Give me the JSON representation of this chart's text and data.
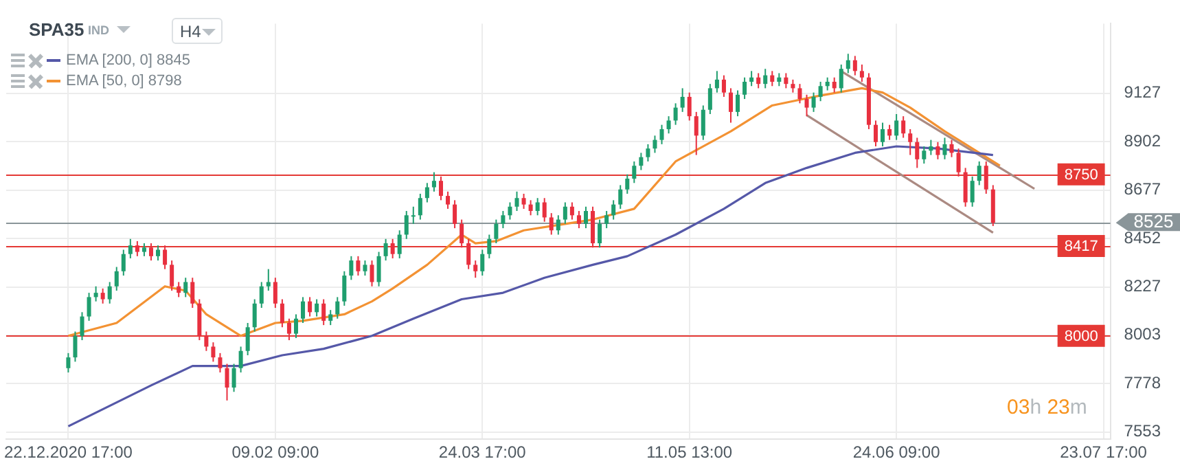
{
  "chart_data": {
    "type": "candlestick",
    "title": "SPA35",
    "annotations": [
      "IND",
      "H4",
      "03h 23m"
    ],
    "categories": [
      "22.12.2020 17:00",
      null,
      null,
      null,
      null,
      null,
      null,
      null,
      null,
      null,
      null,
      null,
      null,
      null,
      null,
      null,
      null,
      null,
      null,
      null,
      null,
      null,
      null,
      null,
      null,
      null,
      null,
      null,
      null,
      null,
      "09.02 09:00",
      null,
      null,
      null,
      null,
      null,
      null,
      null,
      null,
      null,
      null,
      null,
      null,
      null,
      null,
      null,
      null,
      null,
      null,
      null,
      null,
      null,
      null,
      null,
      null,
      null,
      null,
      null,
      null,
      null,
      "24.03 17:00",
      null,
      null,
      null,
      null,
      null,
      null,
      null,
      null,
      null,
      null,
      null,
      null,
      null,
      null,
      null,
      null,
      null,
      null,
      null,
      null,
      null,
      null,
      null,
      null,
      null,
      null,
      null,
      null,
      null,
      "11.05 13:00",
      null,
      null,
      null,
      null,
      null,
      null,
      null,
      null,
      null,
      null,
      null,
      null,
      null,
      null,
      null,
      null,
      null,
      null,
      null,
      null,
      null,
      null,
      null,
      null,
      null,
      null,
      null,
      null,
      null,
      "24.06 09:00",
      null,
      null,
      null,
      null,
      null,
      null,
      null,
      null,
      null,
      null,
      null,
      null,
      null,
      null,
      null,
      null,
      null,
      null,
      null,
      null,
      null,
      null,
      null,
      null,
      null,
      null,
      null,
      null,
      null,
      "23.07 17:00",
      null
    ],
    "ohlc": [
      [
        7850,
        7920,
        7830,
        7900
      ],
      [
        7900,
        8020,
        7880,
        8000
      ],
      [
        8000,
        8110,
        7980,
        8090
      ],
      [
        8090,
        8200,
        8070,
        8180
      ],
      [
        8180,
        8230,
        8160,
        8200
      ],
      [
        8200,
        8220,
        8150,
        8170
      ],
      [
        8170,
        8250,
        8150,
        8230
      ],
      [
        8230,
        8320,
        8210,
        8300
      ],
      [
        8300,
        8400,
        8280,
        8380
      ],
      [
        8380,
        8450,
        8360,
        8420
      ],
      [
        8420,
        8440,
        8370,
        8390
      ],
      [
        8390,
        8430,
        8370,
        8410
      ],
      [
        8410,
        8430,
        8350,
        8370
      ],
      [
        8370,
        8420,
        8350,
        8400
      ],
      [
        8400,
        8420,
        8310,
        8330
      ],
      [
        8330,
        8350,
        8210,
        8230
      ],
      [
        8230,
        8250,
        8180,
        8200
      ],
      [
        8200,
        8270,
        8180,
        8250
      ],
      [
        8250,
        8270,
        8130,
        8150
      ],
      [
        8150,
        8170,
        7980,
        8000
      ],
      [
        8000,
        8020,
        7930,
        7950
      ],
      [
        7950,
        7970,
        7880,
        7900
      ],
      [
        7900,
        7920,
        7830,
        7850
      ],
      [
        7850,
        7870,
        7700,
        7760
      ],
      [
        7760,
        7870,
        7740,
        7850
      ],
      [
        7850,
        7950,
        7830,
        7930
      ],
      [
        7930,
        8060,
        7910,
        8040
      ],
      [
        8040,
        8170,
        8020,
        8150
      ],
      [
        8150,
        8250,
        8130,
        8230
      ],
      [
        8230,
        8310,
        8210,
        8250
      ],
      [
        8250,
        8270,
        8130,
        8150
      ],
      [
        8150,
        8170,
        8040,
        8060
      ],
      [
        8060,
        8080,
        7980,
        8010
      ],
      [
        8010,
        8100,
        7990,
        8080
      ],
      [
        8080,
        8180,
        8060,
        8160
      ],
      [
        8160,
        8180,
        8090,
        8110
      ],
      [
        8110,
        8170,
        8090,
        8150
      ],
      [
        8150,
        8170,
        8050,
        8070
      ],
      [
        8070,
        8120,
        8050,
        8100
      ],
      [
        8100,
        8180,
        8080,
        8160
      ],
      [
        8160,
        8300,
        8140,
        8280
      ],
      [
        8280,
        8370,
        8260,
        8350
      ],
      [
        8350,
        8370,
        8280,
        8300
      ],
      [
        8300,
        8350,
        8280,
        8330
      ],
      [
        8330,
        8350,
        8230,
        8250
      ],
      [
        8250,
        8390,
        8230,
        8370
      ],
      [
        8370,
        8450,
        8350,
        8430
      ],
      [
        8430,
        8450,
        8360,
        8380
      ],
      [
        8380,
        8490,
        8360,
        8470
      ],
      [
        8470,
        8580,
        8450,
        8560
      ],
      [
        8560,
        8600,
        8520,
        8560
      ],
      [
        8560,
        8660,
        8540,
        8640
      ],
      [
        8640,
        8710,
        8620,
        8690
      ],
      [
        8690,
        8760,
        8670,
        8720
      ],
      [
        8720,
        8740,
        8630,
        8650
      ],
      [
        8650,
        8670,
        8590,
        8610
      ],
      [
        8610,
        8630,
        8500,
        8520
      ],
      [
        8520,
        8540,
        8410,
        8430
      ],
      [
        8430,
        8450,
        8310,
        8330
      ],
      [
        8330,
        8350,
        8270,
        8300
      ],
      [
        8300,
        8400,
        8280,
        8380
      ],
      [
        8380,
        8470,
        8360,
        8450
      ],
      [
        8450,
        8540,
        8430,
        8520
      ],
      [
        8520,
        8580,
        8500,
        8560
      ],
      [
        8560,
        8620,
        8540,
        8600
      ],
      [
        8600,
        8670,
        8580,
        8640
      ],
      [
        8640,
        8660,
        8590,
        8610
      ],
      [
        8610,
        8630,
        8560,
        8580
      ],
      [
        8580,
        8640,
        8560,
        8620
      ],
      [
        8620,
        8640,
        8530,
        8550
      ],
      [
        8550,
        8570,
        8470,
        8490
      ],
      [
        8490,
        8560,
        8470,
        8540
      ],
      [
        8540,
        8620,
        8520,
        8600
      ],
      [
        8600,
        8620,
        8540,
        8560
      ],
      [
        8560,
        8580,
        8500,
        8520
      ],
      [
        8520,
        8600,
        8500,
        8580
      ],
      [
        8580,
        8600,
        8410,
        8430
      ],
      [
        8430,
        8540,
        8410,
        8520
      ],
      [
        8520,
        8580,
        8500,
        8560
      ],
      [
        8560,
        8630,
        8540,
        8610
      ],
      [
        8610,
        8700,
        8590,
        8680
      ],
      [
        8680,
        8750,
        8660,
        8730
      ],
      [
        8730,
        8810,
        8710,
        8790
      ],
      [
        8790,
        8850,
        8770,
        8830
      ],
      [
        8830,
        8890,
        8810,
        8870
      ],
      [
        8870,
        8930,
        8850,
        8910
      ],
      [
        8910,
        8980,
        8890,
        8960
      ],
      [
        8960,
        9020,
        8940,
        9000
      ],
      [
        9000,
        9080,
        8980,
        9060
      ],
      [
        9060,
        9150,
        9040,
        9110
      ],
      [
        9110,
        9130,
        9000,
        9020
      ],
      [
        9020,
        9040,
        8840,
        8930
      ],
      [
        8930,
        9070,
        8910,
        9050
      ],
      [
        9050,
        9170,
        9030,
        9150
      ],
      [
        9150,
        9230,
        9130,
        9190
      ],
      [
        9190,
        9210,
        9110,
        9130
      ],
      [
        9130,
        9150,
        8990,
        9040
      ],
      [
        9040,
        9140,
        9020,
        9120
      ],
      [
        9120,
        9200,
        9100,
        9180
      ],
      [
        9180,
        9230,
        9160,
        9200
      ],
      [
        9200,
        9220,
        9150,
        9170
      ],
      [
        9170,
        9240,
        9150,
        9210
      ],
      [
        9210,
        9230,
        9160,
        9180
      ],
      [
        9180,
        9220,
        9160,
        9200
      ],
      [
        9200,
        9220,
        9150,
        9170
      ],
      [
        9170,
        9190,
        9130,
        9150
      ],
      [
        9150,
        9170,
        9080,
        9100
      ],
      [
        9100,
        9120,
        9020,
        9060
      ],
      [
        9060,
        9130,
        9040,
        9110
      ],
      [
        9110,
        9180,
        9090,
        9160
      ],
      [
        9160,
        9200,
        9140,
        9180
      ],
      [
        9180,
        9200,
        9130,
        9150
      ],
      [
        9150,
        9260,
        9130,
        9240
      ],
      [
        9240,
        9310,
        9220,
        9280
      ],
      [
        9280,
        9300,
        9210,
        9230
      ],
      [
        9230,
        9260,
        9180,
        9200
      ],
      [
        9200,
        9220,
        8960,
        8980
      ],
      [
        8980,
        9000,
        8880,
        8900
      ],
      [
        8900,
        8990,
        8880,
        8960
      ],
      [
        8960,
        8980,
        8910,
        8930
      ],
      [
        8930,
        9030,
        8910,
        9000
      ],
      [
        9000,
        9020,
        8920,
        8940
      ],
      [
        8940,
        8960,
        8840,
        8900
      ],
      [
        8900,
        8920,
        8780,
        8820
      ],
      [
        8820,
        8880,
        8800,
        8860
      ],
      [
        8860,
        8910,
        8840,
        8880
      ],
      [
        8880,
        8900,
        8820,
        8840
      ],
      [
        8840,
        8920,
        8820,
        8890
      ],
      [
        8890,
        8910,
        8830,
        8850
      ],
      [
        8850,
        8870,
        8740,
        8760
      ],
      [
        8760,
        8780,
        8600,
        8620
      ],
      [
        8620,
        8740,
        8600,
        8720
      ],
      [
        8720,
        8810,
        8700,
        8790
      ],
      [
        8790,
        8810,
        8660,
        8680
      ],
      [
        8680,
        8700,
        8510,
        8525
      ],
      null,
      null,
      null,
      null,
      null,
      null,
      null,
      null,
      null,
      null,
      null,
      null,
      null,
      null,
      null,
      null,
      null
    ],
    "series": [
      {
        "type": "line",
        "name": "EMA [200, 0] 8845",
        "color": "#5558a8",
        "values": [
          7580,
          null,
          null,
          null,
          null,
          null,
          null,
          null,
          null,
          null,
          null,
          null,
          7770,
          null,
          null,
          null,
          null,
          null,
          7860,
          null,
          null,
          null,
          null,
          null,
          null,
          7860,
          null,
          null,
          null,
          null,
          null,
          7910,
          null,
          null,
          null,
          null,
          null,
          7940,
          null,
          null,
          null,
          null,
          null,
          null,
          8000,
          null,
          null,
          null,
          null,
          null,
          8080,
          null,
          null,
          null,
          null,
          null,
          null,
          8170,
          null,
          null,
          null,
          null,
          null,
          8200,
          null,
          null,
          null,
          null,
          null,
          8270,
          null,
          null,
          null,
          null,
          null,
          null,
          8330,
          null,
          null,
          null,
          null,
          8370,
          null,
          null,
          null,
          null,
          null,
          null,
          8470,
          null,
          null,
          null,
          null,
          null,
          null,
          8590,
          null,
          null,
          null,
          null,
          null,
          8710,
          null,
          null,
          null,
          null,
          null,
          8780,
          null,
          null,
          null,
          null,
          null,
          null,
          8850,
          null,
          null,
          null,
          null,
          null,
          8880,
          null,
          null,
          null,
          null,
          null,
          8870,
          null,
          null,
          null,
          null,
          null,
          null,
          null,
          8840,
          null,
          null,
          null,
          null,
          null,
          null,
          null,
          null,
          null,
          null,
          null,
          null,
          null,
          null,
          null,
          null,
          null
        ]
      },
      {
        "type": "line",
        "name": "EMA [50, 0] 8798",
        "color": "#f39233",
        "values": [
          8000,
          null,
          null,
          null,
          null,
          null,
          null,
          8060,
          null,
          null,
          null,
          null,
          null,
          null,
          8230,
          null,
          null,
          8210,
          null,
          null,
          8100,
          null,
          null,
          null,
          null,
          8000,
          null,
          null,
          null,
          null,
          8060,
          null,
          null,
          null,
          8070,
          null,
          null,
          8085,
          null,
          null,
          8100,
          null,
          null,
          null,
          8160,
          null,
          null,
          8220,
          null,
          null,
          null,
          null,
          8330,
          null,
          null,
          null,
          null,
          8470,
          null,
          8430,
          null,
          null,
          8440,
          null,
          null,
          null,
          8490,
          null,
          null,
          null,
          null,
          null,
          8520,
          null,
          null,
          null,
          8540,
          null,
          null,
          null,
          null,
          null,
          8590,
          null,
          null,
          null,
          null,
          null,
          8810,
          null,
          null,
          null,
          null,
          null,
          null,
          null,
          8950,
          null,
          null,
          null,
          null,
          null,
          9070,
          null,
          null,
          null,
          null,
          null,
          9110,
          null,
          null,
          null,
          null,
          null,
          null,
          9150,
          null,
          null,
          9130,
          null,
          null,
          null,
          9060,
          null,
          null,
          null,
          null,
          8950,
          null,
          null,
          null,
          8870,
          null,
          null,
          null,
          8790,
          null,
          null,
          null,
          null,
          null,
          null,
          null,
          null,
          null,
          null,
          null,
          null,
          null,
          null,
          null,
          null
        ]
      },
      {
        "type": "line",
        "color": "#ab8a82",
        "values": [
          null,
          null,
          null,
          null,
          null,
          null,
          null,
          null,
          null,
          null,
          null,
          null,
          null,
          null,
          null,
          null,
          null,
          null,
          null,
          null,
          null,
          null,
          null,
          null,
          null,
          null,
          null,
          null,
          null,
          null,
          null,
          null,
          null,
          null,
          null,
          null,
          null,
          null,
          null,
          null,
          null,
          null,
          null,
          null,
          null,
          null,
          null,
          null,
          null,
          null,
          null,
          null,
          null,
          null,
          null,
          null,
          null,
          null,
          null,
          null,
          null,
          null,
          null,
          null,
          null,
          null,
          null,
          null,
          null,
          null,
          null,
          null,
          null,
          null,
          null,
          null,
          null,
          null,
          null,
          null,
          null,
          null,
          null,
          null,
          null,
          null,
          null,
          null,
          null,
          null,
          null,
          null,
          null,
          null,
          null,
          null,
          null,
          null,
          null,
          null,
          null,
          null,
          null,
          null,
          null,
          null,
          null,
          null,
          null,
          null,
          null,
          null,
          9229,
          null,
          null,
          null,
          null,
          null,
          null,
          null,
          null,
          null,
          null,
          null,
          null,
          null,
          null,
          null,
          null,
          null,
          null,
          null,
          null,
          null,
          null,
          null,
          null,
          null,
          null,
          null,
          8683,
          null,
          null,
          null,
          null,
          null,
          null,
          null,
          null,
          null,
          null,
          null
        ]
      },
      {
        "type": "line",
        "color": "#ab8a82",
        "values": [
          null,
          null,
          null,
          null,
          null,
          null,
          null,
          null,
          null,
          null,
          null,
          null,
          null,
          null,
          null,
          null,
          null,
          null,
          null,
          null,
          null,
          null,
          null,
          null,
          null,
          null,
          null,
          null,
          null,
          null,
          null,
          null,
          null,
          null,
          null,
          null,
          null,
          null,
          null,
          null,
          null,
          null,
          null,
          null,
          null,
          null,
          null,
          null,
          null,
          null,
          null,
          null,
          null,
          null,
          null,
          null,
          null,
          null,
          null,
          null,
          null,
          null,
          null,
          null,
          null,
          null,
          null,
          null,
          null,
          null,
          null,
          null,
          null,
          null,
          null,
          null,
          null,
          null,
          null,
          null,
          null,
          null,
          null,
          null,
          null,
          null,
          null,
          null,
          null,
          null,
          null,
          null,
          null,
          null,
          null,
          null,
          null,
          null,
          null,
          null,
          null,
          null,
          null,
          null,
          null,
          null,
          null,
          9025,
          null,
          null,
          null,
          null,
          null,
          null,
          null,
          null,
          null,
          null,
          null,
          null,
          null,
          null,
          null,
          null,
          null,
          null,
          null,
          null,
          null,
          null,
          null,
          null,
          null,
          null,
          8479,
          null,
          null,
          null,
          null,
          null,
          null,
          null,
          null,
          null,
          null,
          null,
          null,
          null,
          null,
          null,
          null,
          null
        ]
      }
    ],
    "ylim": [
      7520,
      9450
    ],
    "yticks": [
      7553,
      7778,
      8003,
      8227,
      8452,
      8677,
      8902,
      9127
    ],
    "ref_lines": [
      {
        "axis": "y",
        "value": 8750,
        "label": "8750",
        "color": "#e53935"
      },
      {
        "axis": "y",
        "value": 8417,
        "label": "8417",
        "color": "#e53935"
      },
      {
        "axis": "y",
        "value": 8000,
        "label": "8000",
        "color": "#e53935"
      },
      {
        "axis": "y",
        "value": 8525,
        "label": "8525",
        "color": "#8a9599"
      }
    ],
    "grid": true,
    "legend": "top left"
  }
}
